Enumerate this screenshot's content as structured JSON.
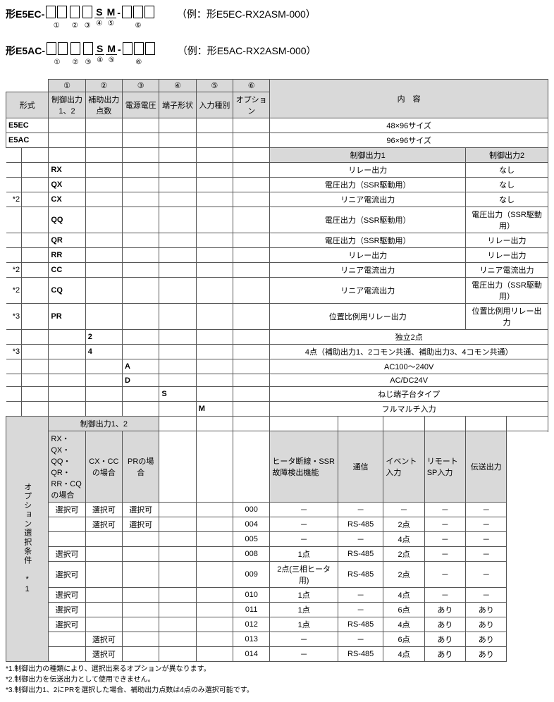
{
  "models": [
    {
      "prefix": "形E5EC-",
      "boxes": [
        [
          "①",
          "①"
        ],
        [
          "②"
        ],
        [
          "③"
        ],
        null,
        null,
        null,
        [
          "⑥",
          "⑥",
          "⑥"
        ]
      ],
      "fixedS": "④",
      "fixedM": "⑤",
      "example": "（例：形E5EC-RX2ASM-000）"
    },
    {
      "prefix": "形E5AC-",
      "boxes": [
        [
          "①",
          "①"
        ],
        [
          "②"
        ],
        [
          "③"
        ],
        null,
        null,
        null,
        [
          "⑥",
          "⑥",
          "⑥"
        ]
      ],
      "fixedS": "④",
      "fixedM": "⑤",
      "example": "（例：形E5AC-RX2ASM-000）"
    }
  ],
  "topNums": [
    "①",
    "②",
    "③",
    "④",
    "⑤",
    "⑥"
  ],
  "topHdrs": {
    "type": "形式",
    "c1": "制御出力1、2",
    "c2": "補助出力点数",
    "c3": "電源電圧",
    "c4": "端子形状",
    "c5": "入力種別",
    "c6": "オプション",
    "content": "内　容"
  },
  "sizeRows": [
    {
      "k": "E5EC",
      "v": "48×96サイズ"
    },
    {
      "k": "E5AC",
      "v": "96×96サイズ"
    }
  ],
  "outHdr": {
    "o1": "制御出力1",
    "o2": "制御出力2"
  },
  "outputs": [
    {
      "star": "",
      "code": "RX",
      "o1": "リレー出力",
      "o2": "なし"
    },
    {
      "star": "",
      "code": "QX",
      "o1": "電圧出力（SSR駆動用）",
      "o2": "なし"
    },
    {
      "star": "*2",
      "code": "CX",
      "o1": "リニア電流出力",
      "o2": "なし"
    },
    {
      "star": "",
      "code": "QQ",
      "o1": "電圧出力（SSR駆動用）",
      "o2": "電圧出力（SSR駆動用）"
    },
    {
      "star": "",
      "code": "QR",
      "o1": "電圧出力（SSR駆動用）",
      "o2": "リレー出力"
    },
    {
      "star": "",
      "code": "RR",
      "o1": "リレー出力",
      "o2": "リレー出力"
    },
    {
      "star": "*2",
      "code": "CC",
      "o1": "リニア電流出力",
      "o2": "リニア電流出力"
    },
    {
      "star": "*2",
      "code": "CQ",
      "o1": "リニア電流出力",
      "o2": "電圧出力（SSR駆動用）"
    },
    {
      "star": "*3",
      "code": "PR",
      "o1": "位置比例用リレー出力",
      "o2": "位置比例用リレー出力"
    }
  ],
  "aux": [
    {
      "star": "",
      "code": "2",
      "v": "独立2点"
    },
    {
      "star": "*3",
      "code": "4",
      "v": "4点（補助出力1、2コモン共通、補助出力3、4コモン共通）"
    }
  ],
  "power": [
    {
      "code": "A",
      "v": "AC100～240V"
    },
    {
      "code": "D",
      "v": "AC/DC24V"
    }
  ],
  "term": {
    "code": "S",
    "v": "ねじ端子台タイプ"
  },
  "input": {
    "code": "M",
    "v": "フルマルチ入力"
  },
  "optLabel": "オプション選択条件 *1",
  "optGroupHdr": "制御出力1、2",
  "optCols": {
    "g1": "RX・QX・QQ・QR・RR・CQの場合",
    "g2": "CX・CCの場合",
    "g3": "PRの場合",
    "h1": "ヒータ断線・SSR故障検出機能",
    "h2": "通信",
    "h3": "イベント入力",
    "h4": "リモートSP入力",
    "h5": "伝送出力"
  },
  "optRows": [
    {
      "g1": "選択可",
      "g2": "選択可",
      "g3": "選択可",
      "code": "000",
      "h1": "－",
      "h2": "－",
      "h3": "－",
      "h4": "－",
      "h5": "－"
    },
    {
      "g1": "",
      "g2": "選択可",
      "g3": "選択可",
      "code": "004",
      "h1": "－",
      "h2": "RS-485",
      "h3": "2点",
      "h4": "－",
      "h5": "－"
    },
    {
      "g1": "",
      "g2": "",
      "g3": "",
      "code": "005",
      "h1": "－",
      "h2": "－",
      "h3": "4点",
      "h4": "－",
      "h5": "－"
    },
    {
      "g1": "選択可",
      "g2": "",
      "g3": "",
      "code": "008",
      "h1": "1点",
      "h2": "RS-485",
      "h3": "2点",
      "h4": "－",
      "h5": "－"
    },
    {
      "g1": "選択可",
      "g2": "",
      "g3": "",
      "code": "009",
      "h1": "2点(三相ヒータ用)",
      "h2": "RS-485",
      "h3": "2点",
      "h4": "－",
      "h5": "－"
    },
    {
      "g1": "選択可",
      "g2": "",
      "g3": "",
      "code": "010",
      "h1": "1点",
      "h2": "－",
      "h3": "4点",
      "h4": "－",
      "h5": "－"
    },
    {
      "g1": "選択可",
      "g2": "",
      "g3": "",
      "code": "011",
      "h1": "1点",
      "h2": "－",
      "h3": "6点",
      "h4": "あり",
      "h5": "あり"
    },
    {
      "g1": "選択可",
      "g2": "",
      "g3": "",
      "code": "012",
      "h1": "1点",
      "h2": "RS-485",
      "h3": "4点",
      "h4": "あり",
      "h5": "あり"
    },
    {
      "g1": "",
      "g2": "選択可",
      "g3": "",
      "code": "013",
      "h1": "－",
      "h2": "－",
      "h3": "6点",
      "h4": "あり",
      "h5": "あり"
    },
    {
      "g1": "",
      "g2": "選択可",
      "g3": "",
      "code": "014",
      "h1": "－",
      "h2": "RS-485",
      "h3": "4点",
      "h4": "あり",
      "h5": "あり"
    }
  ],
  "notes": [
    "*1.制御出力の種類により、選択出来るオプションが異なります。",
    "*2.制御出力を伝送出力として使用できません。",
    "*3.制御出力1、2にPRを選択した場合、補助出力点数は4点のみ選択可能です。"
  ],
  "colors": {
    "headerBg": "#d9d9d9",
    "border": "#555555",
    "bg": "#ffffff",
    "text": "#000000"
  }
}
